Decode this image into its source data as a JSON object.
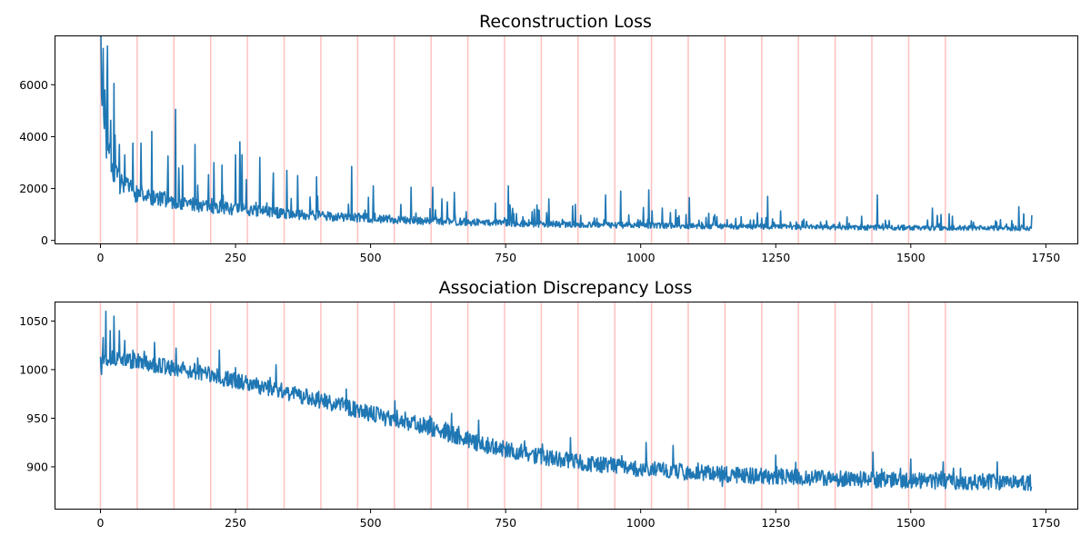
{
  "chart_data": [
    {
      "type": "line",
      "title": "Reconstruction Loss",
      "xlabel": "",
      "ylabel": "",
      "xlim": [
        -85,
        1810
      ],
      "ylim": [
        -150,
        7900
      ],
      "xticks": [
        0,
        250,
        500,
        750,
        1000,
        1250,
        1500,
        1750
      ],
      "yticks": [
        0,
        2000,
        4000,
        6000
      ],
      "grid": false,
      "line_color": "#1f77b4",
      "vline_color": "#ffc0c0",
      "vlines": [
        0,
        68,
        136,
        204,
        272,
        340,
        408,
        476,
        544,
        612,
        680,
        748,
        816,
        884,
        952,
        1020,
        1088,
        1156,
        1224,
        1292,
        1360,
        1428,
        1496,
        1564
      ],
      "n_points": 1725,
      "trend": [
        [
          0,
          6300
        ],
        [
          10,
          3800
        ],
        [
          20,
          2800
        ],
        [
          40,
          2100
        ],
        [
          80,
          1700
        ],
        [
          150,
          1450
        ],
        [
          250,
          1200
        ],
        [
          400,
          950
        ],
        [
          600,
          760
        ],
        [
          800,
          640
        ],
        [
          1000,
          580
        ],
        [
          1200,
          540
        ],
        [
          1400,
          500
        ],
        [
          1600,
          480
        ],
        [
          1725,
          470
        ]
      ],
      "noise_rel": 0.22,
      "spike_rate": 0.1,
      "spike_scale": 1.2,
      "peaks": [
        [
          1,
          7600
        ],
        [
          3,
          5200
        ],
        [
          5,
          7400
        ],
        [
          8,
          5800
        ],
        [
          12,
          6150
        ],
        [
          18,
          3600
        ],
        [
          25,
          6050
        ],
        [
          35,
          3700
        ],
        [
          60,
          3750
        ],
        [
          75,
          3750
        ],
        [
          95,
          4200
        ],
        [
          125,
          3250
        ],
        [
          139,
          5050
        ],
        [
          175,
          3700
        ],
        [
          210,
          3000
        ],
        [
          225,
          2900
        ],
        [
          250,
          3300
        ],
        [
          258,
          3800
        ],
        [
          262,
          3300
        ],
        [
          295,
          3200
        ],
        [
          320,
          2600
        ],
        [
          345,
          2700
        ],
        [
          365,
          2500
        ],
        [
          400,
          2450
        ],
        [
          465,
          2850
        ],
        [
          505,
          2100
        ],
        [
          575,
          2050
        ],
        [
          615,
          2050
        ],
        [
          655,
          1850
        ],
        [
          755,
          2100
        ],
        [
          830,
          1600
        ],
        [
          935,
          1750
        ],
        [
          963,
          1900
        ],
        [
          1015,
          1950
        ],
        [
          1090,
          1650
        ],
        [
          1235,
          1700
        ],
        [
          1438,
          1750
        ],
        [
          1540,
          1250
        ],
        [
          1700,
          1300
        ]
      ],
      "seed": 7
    },
    {
      "type": "line",
      "title": "Association Discrepancy Loss",
      "xlabel": "",
      "ylabel": "",
      "xlim": [
        -85,
        1810
      ],
      "ylim": [
        856,
        1070
      ],
      "xticks": [
        0,
        250,
        500,
        750,
        1000,
        1250,
        1500,
        1750
      ],
      "yticks": [
        900,
        950,
        1000,
        1050
      ],
      "grid": false,
      "line_color": "#1f77b4",
      "vline_color": "#ffc0c0",
      "vlines": [
        0,
        68,
        136,
        204,
        272,
        340,
        408,
        476,
        544,
        612,
        680,
        748,
        816,
        884,
        952,
        1020,
        1088,
        1156,
        1224,
        1292,
        1360,
        1428,
        1496,
        1564
      ],
      "n_points": 1725,
      "trend": [
        [
          0,
          1012
        ],
        [
          30,
          1012
        ],
        [
          100,
          1005
        ],
        [
          200,
          995
        ],
        [
          300,
          982
        ],
        [
          400,
          970
        ],
        [
          500,
          955
        ],
        [
          600,
          942
        ],
        [
          700,
          924
        ],
        [
          800,
          912
        ],
        [
          900,
          904
        ],
        [
          1000,
          898
        ],
        [
          1100,
          894
        ],
        [
          1200,
          891
        ],
        [
          1300,
          889
        ],
        [
          1400,
          887
        ],
        [
          1500,
          886
        ],
        [
          1600,
          885
        ],
        [
          1725,
          884
        ]
      ],
      "noise_abs": 7,
      "spike_rate": 0.08,
      "spike_scale": 16,
      "peaks": [
        [
          2,
          995
        ],
        [
          5,
          1033
        ],
        [
          10,
          1060
        ],
        [
          18,
          1040
        ],
        [
          25,
          1055
        ],
        [
          35,
          1040
        ],
        [
          45,
          1030
        ],
        [
          60,
          1020
        ],
        [
          100,
          1028
        ],
        [
          140,
          1022
        ],
        [
          180,
          1012
        ],
        [
          220,
          1020
        ],
        [
          250,
          1002
        ],
        [
          325,
          1005
        ],
        [
          455,
          980
        ],
        [
          545,
          968
        ],
        [
          650,
          955
        ],
        [
          700,
          948
        ],
        [
          870,
          930
        ],
        [
          1010,
          925
        ],
        [
          1060,
          922
        ],
        [
          1250,
          912
        ],
        [
          1430,
          915
        ],
        [
          1500,
          908
        ],
        [
          1560,
          905
        ],
        [
          1660,
          905
        ]
      ],
      "seed": 13
    }
  ]
}
